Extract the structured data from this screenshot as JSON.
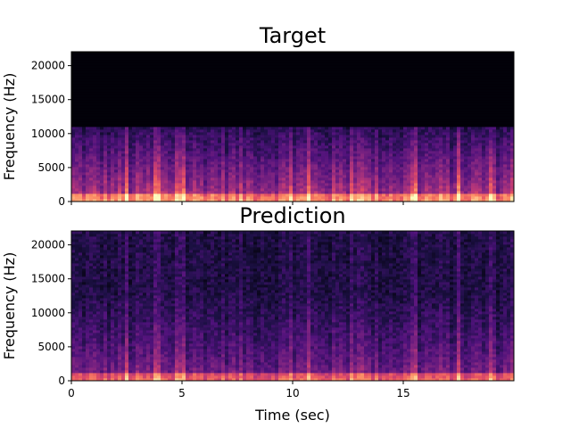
{
  "chart_data": [
    {
      "type": "heatmap",
      "title": "Target",
      "xlabel": "",
      "ylabel": "Frequency (Hz)",
      "xlim": [
        0,
        20
      ],
      "ylim": [
        0,
        22050
      ],
      "x_ticks": [
        0,
        5,
        10,
        15
      ],
      "y_ticks": [
        0,
        5000,
        10000,
        15000,
        20000
      ],
      "y_tick_labels": [
        "0",
        "5000",
        "10000",
        "15000",
        "20000"
      ],
      "x_tick_labels": [],
      "colormap": "magma",
      "band_limit_hz": 11000,
      "description_of_values": "spectral energy high at low frequencies, zero above ~11000 Hz"
    },
    {
      "type": "heatmap",
      "title": "Prediction",
      "xlabel": "Time (sec)",
      "ylabel": "Frequency (Hz)",
      "xlim": [
        0,
        20
      ],
      "ylim": [
        0,
        22050
      ],
      "x_ticks": [
        0,
        5,
        10,
        15
      ],
      "x_tick_labels": [
        "0",
        "5",
        "10",
        "15"
      ],
      "y_ticks": [
        0,
        5000,
        10000,
        15000,
        20000
      ],
      "y_tick_labels": [
        "0",
        "5000",
        "10000",
        "15000",
        "20000"
      ],
      "colormap": "magma",
      "band_limit_hz": 22050
    }
  ],
  "colors": {
    "background_black": "#000004",
    "magma_dark": "#1c1044",
    "magma_purple": "#51127c",
    "magma_mid": "#b73779",
    "magma_orange": "#fc8961",
    "magma_light": "#fcfdbf"
  }
}
